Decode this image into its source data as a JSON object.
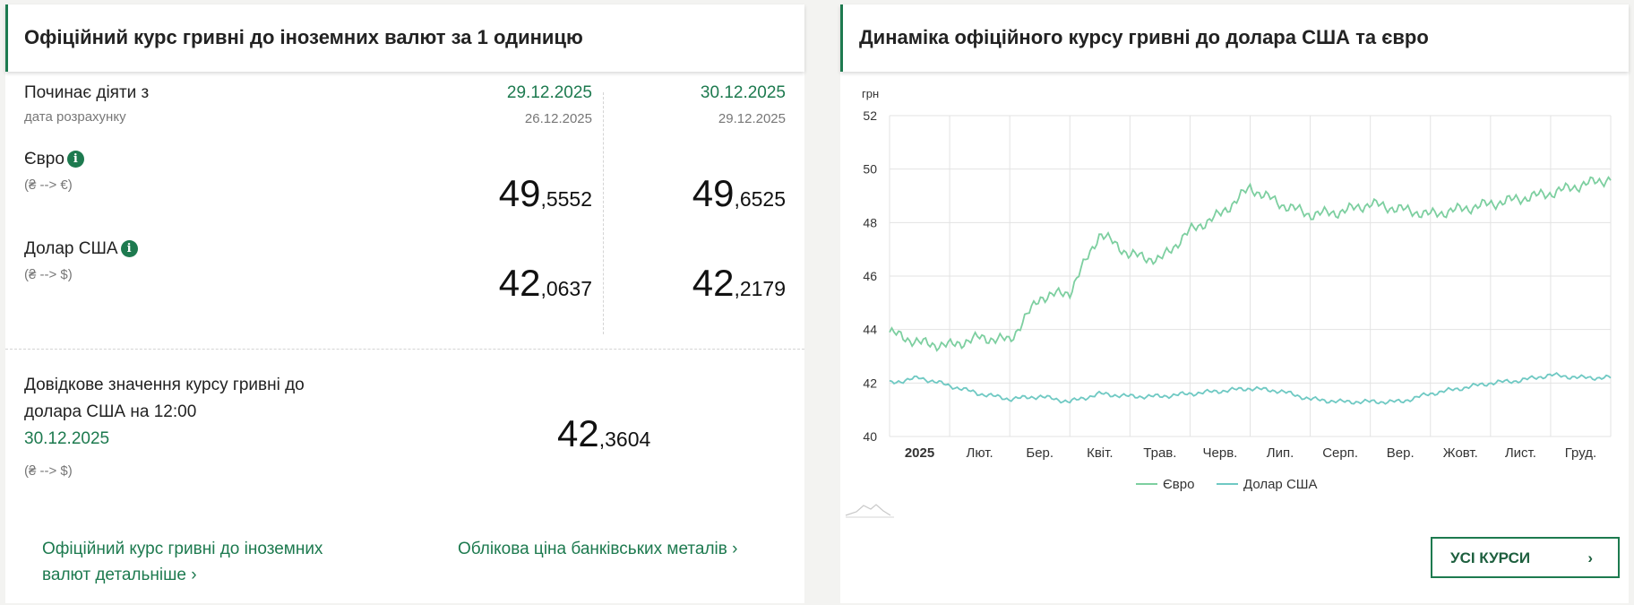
{
  "left_card": {
    "title": "Офіційний курс гривні до іноземних валют за 1 одиницю",
    "effective_label": "Починає діяти з",
    "calc_label": "дата розрахунку",
    "columns": [
      {
        "effective_date": "29.12.2025",
        "calc_date": "26.12.2025"
      },
      {
        "effective_date": "30.12.2025",
        "calc_date": "29.12.2025"
      }
    ],
    "currencies": [
      {
        "name": "Євро",
        "pair": "(₴ --> €)",
        "rates": [
          {
            "int": "49",
            "frac": ",5552"
          },
          {
            "int": "49",
            "frac": ",6525"
          }
        ]
      },
      {
        "name": "Долар США",
        "pair": "(₴ --> $)",
        "rates": [
          {
            "int": "42",
            "frac": ",0637"
          },
          {
            "int": "42",
            "frac": ",2179"
          }
        ]
      }
    ],
    "reference": {
      "line1": "Довідкове значення курсу гривні до",
      "line2": "долара США на 12:00",
      "date": "30.12.2025",
      "pair": "(₴ --> $)",
      "int": "42",
      "frac": ",3604"
    },
    "links": {
      "detailed_line1": "Офіційний курс гривні до іноземних",
      "detailed_line2": "валют детальніше",
      "metals": "Облікова ціна банківських металів"
    }
  },
  "right_card": {
    "title": "Динаміка офіційного курсу гривні до долара США та євро",
    "all_rates_button": "УСІ КУРСИ"
  },
  "chart_data": {
    "type": "line",
    "ylabel": "грн",
    "ylim": [
      40,
      52
    ],
    "yticks": [
      "40",
      "42",
      "44",
      "46",
      "48",
      "50",
      "52"
    ],
    "x_tick_labels": [
      "2025",
      "Лют.",
      "Бер.",
      "Квіт.",
      "Трав.",
      "Черв.",
      "Лип.",
      "Серп.",
      "Вер.",
      "Жовт.",
      "Лист.",
      "Груд."
    ],
    "grid": true,
    "legend": "bottom",
    "x_points": [
      "01.01",
      "15.01",
      "01.02",
      "15.02",
      "01.03",
      "15.03",
      "01.04",
      "15.04",
      "01.05",
      "15.05",
      "01.06",
      "15.06",
      "01.07",
      "15.07",
      "01.08",
      "15.08",
      "01.09",
      "15.09",
      "01.10",
      "15.10",
      "01.11",
      "15.11",
      "01.12",
      "15.12",
      "29.12"
    ],
    "series": [
      {
        "name": "Євро",
        "color": "#7dcfa0",
        "values": [
          43.9,
          43.5,
          43.4,
          43.7,
          43.6,
          45.2,
          45.4,
          47.6,
          46.8,
          46.6,
          47.7,
          48.3,
          49.3,
          48.7,
          48.3,
          48.4,
          48.7,
          48.5,
          48.3,
          48.5,
          48.7,
          48.9,
          49.1,
          49.4,
          49.65
        ]
      },
      {
        "name": "Долар США",
        "color": "#6fc9c3",
        "values": [
          42.0,
          42.2,
          41.9,
          41.6,
          41.4,
          41.5,
          41.3,
          41.6,
          41.5,
          41.5,
          41.6,
          41.7,
          41.8,
          41.7,
          41.4,
          41.3,
          41.3,
          41.3,
          41.6,
          41.8,
          42.0,
          42.1,
          42.3,
          42.2,
          42.2
        ]
      }
    ]
  }
}
